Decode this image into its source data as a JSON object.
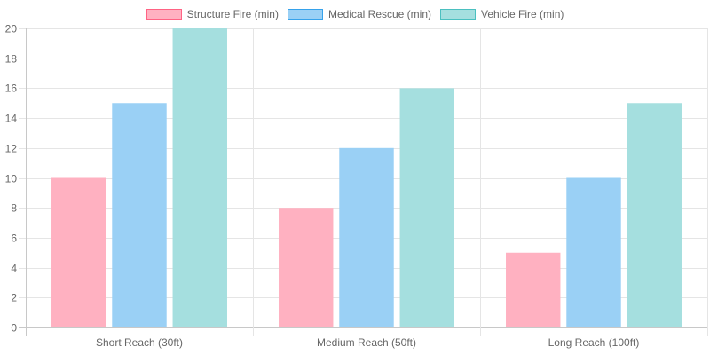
{
  "chart_data": {
    "type": "bar",
    "categories": [
      "Short Reach (30ft)",
      "Medium Reach (50ft)",
      "Long Reach (100ft)"
    ],
    "series": [
      {
        "name": "Structure Fire (min)",
        "values": [
          10,
          8,
          5
        ],
        "fill": "#ffb1c1",
        "stroke": "#ff6384"
      },
      {
        "name": "Medical Rescue (min)",
        "values": [
          15,
          12,
          10
        ],
        "fill": "#9ad0f5",
        "stroke": "#36a2eb"
      },
      {
        "name": "Vehicle Fire (min)",
        "values": [
          20,
          16,
          15
        ],
        "fill": "#a5dfdf",
        "stroke": "#4bc0c0"
      }
    ],
    "ylim": [
      0,
      20
    ],
    "yticks": [
      0,
      2,
      4,
      6,
      8,
      10,
      12,
      14,
      16,
      18,
      20
    ],
    "grid": true,
    "legend_position": "top"
  }
}
